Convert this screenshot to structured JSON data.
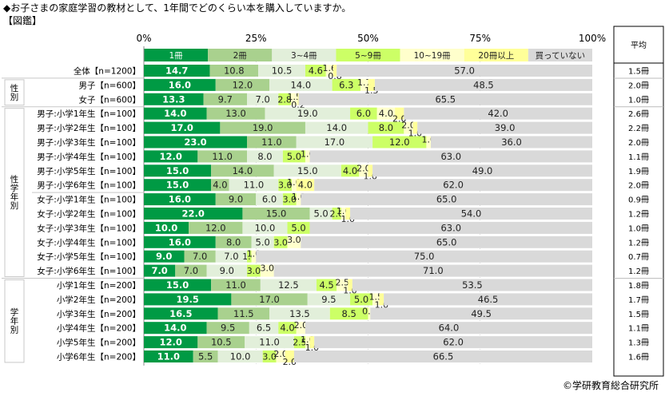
{
  "header": {
    "title": "◆お子さまの家庭学習の教材として、1年間でどのくらい本を購入していますか。",
    "subtitle": "【図鑑】"
  },
  "footer": {
    "copyright": "©学研教育総合研究所"
  },
  "avg_header": "平均",
  "groups": [
    {
      "label": "性別",
      "rows": [
        1,
        2
      ]
    },
    {
      "label": "性学年別",
      "rows": [
        3,
        14
      ]
    },
    {
      "label": "学年別",
      "rows": [
        15,
        20
      ]
    }
  ],
  "colors": [
    "#009a44",
    "#a9d18e",
    "#e2efda",
    "#ccff66",
    "#ffffcc",
    "#ffff99",
    "#d9d9d9"
  ],
  "chart_data": {
    "type": "bar",
    "orientation": "horizontal-stacked-100",
    "title": "お子さまの家庭学習の教材として、1年間でどのくらい本を購入していますか。【図鑑】",
    "xlabel": "",
    "ylabel": "",
    "xlim": [
      0,
      100
    ],
    "x_ticks": [
      "0%",
      "25%",
      "50%",
      "75%",
      "100%"
    ],
    "legend": [
      "1冊",
      "2冊",
      "3~4冊",
      "5~9冊",
      "10~19冊",
      "20冊以上",
      "買っていない"
    ],
    "legend_position": "top",
    "grid": true,
    "categories": [
      "全体【n=1200】",
      "男子【n=600】",
      "女子【n=600】",
      "男子:小学1年生【n=100】",
      "男子:小学2年生【n=100】",
      "男子:小学3年生【n=100】",
      "男子:小学4年生【n=100】",
      "男子:小学5年生【n=100】",
      "男子:小学6年生【n=100】",
      "女子:小学1年生【n=100】",
      "女子:小学2年生【n=100】",
      "女子:小学3年生【n=100】",
      "女子:小学4年生【n=100】",
      "女子:小学5年生【n=100】",
      "女子:小学6年生【n=100】",
      "小学1年生【n=200】",
      "小学2年生【n=200】",
      "小学3年生【n=200】",
      "小学4年生【n=200】",
      "小学5年生【n=200】",
      "小学6年生【n=200】"
    ],
    "series": [
      {
        "name": "1冊",
        "values": [
          14.7,
          16.0,
          13.3,
          14.0,
          17.0,
          23.0,
          12.0,
          15.0,
          15.0,
          16.0,
          22.0,
          10.0,
          16.0,
          9.0,
          7.0,
          15.0,
          19.5,
          16.5,
          14.0,
          12.0,
          11.0
        ]
      },
      {
        "name": "2冊",
        "values": [
          10.8,
          12.0,
          9.7,
          13.0,
          19.0,
          11.0,
          11.0,
          14.0,
          4.0,
          9.0,
          15.0,
          12.0,
          8.0,
          7.0,
          7.0,
          11.0,
          17.0,
          11.5,
          9.5,
          10.5,
          5.5
        ]
      },
      {
        "name": "3~4冊",
        "values": [
          10.5,
          14.0,
          7.0,
          19.0,
          14.0,
          17.0,
          8.0,
          15.0,
          11.0,
          6.0,
          5.0,
          10.0,
          5.0,
          7.0,
          9.0,
          12.5,
          9.5,
          13.5,
          6.5,
          11.0,
          10.0
        ]
      },
      {
        "name": "5~9冊",
        "values": [
          4.6,
          6.3,
          2.8,
          6.0,
          8.0,
          12.0,
          5.0,
          4.0,
          3.0,
          3.0,
          2.0,
          5.0,
          3.0,
          1.0,
          3.0,
          4.5,
          5.0,
          8.5,
          4.0,
          2.5,
          3.0
        ]
      },
      {
        "name": "10~19冊",
        "values": [
          1.6,
          1.7,
          1.5,
          4.0,
          2.0,
          1.0,
          1.0,
          2.0,
          1.0,
          1.0,
          1.0,
          0,
          3.0,
          1.0,
          3.0,
          2.5,
          1.5,
          0.5,
          2.0,
          1.0,
          2.0
        ]
      },
      {
        "name": "20冊以上",
        "values": [
          0.8,
          1.5,
          0.2,
          2.0,
          1.0,
          0,
          0,
          1.0,
          4.0,
          0,
          1.0,
          0,
          0,
          0,
          0,
          1.0,
          1.0,
          0,
          0,
          1.0,
          2.0
        ]
      },
      {
        "name": "買っていない",
        "values": [
          57.0,
          48.5,
          65.5,
          42.0,
          39.0,
          36.0,
          63.0,
          49.0,
          62.0,
          65.0,
          54.0,
          63.0,
          65.0,
          75.0,
          71.0,
          53.5,
          46.5,
          49.5,
          64.0,
          62.0,
          66.5
        ]
      }
    ],
    "averages": [
      "1.5冊",
      "2.0冊",
      "1.0冊",
      "2.6冊",
      "2.2冊",
      "2.0冊",
      "1.1冊",
      "1.9冊",
      "2.0冊",
      "0.9冊",
      "1.2冊",
      "1.0冊",
      "1.2冊",
      "0.7冊",
      "1.2冊",
      "1.8冊",
      "1.7冊",
      "1.5冊",
      "1.1冊",
      "1.3冊",
      "1.6冊"
    ]
  }
}
